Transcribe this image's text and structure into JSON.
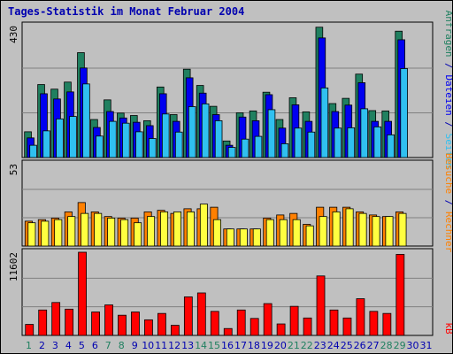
{
  "title": "Tages-Statistik im Monat Februar 2004",
  "colors": {
    "frame_bg": "#C0C0C0",
    "plot_bg": "#C0C0C0",
    "title": "#0000B0",
    "hits": "#208060",
    "files": "#0000F0",
    "pages": "#30C0F0",
    "visits": "#FF8000",
    "sites": "#FFFF40",
    "kbytes": "#FF0000",
    "weekend_label": "#208060",
    "weekday_label": "#0000B0"
  },
  "chart_data": [
    {
      "type": "bar",
      "panel": "top",
      "ymax_label": "430",
      "ylim": [
        0,
        430
      ],
      "grid": true,
      "categories": [
        "1",
        "2",
        "3",
        "4",
        "5",
        "6",
        "7",
        "8",
        "9",
        "10",
        "11",
        "12",
        "13",
        "14",
        "15",
        "16",
        "17",
        "18",
        "19",
        "20",
        "21",
        "22",
        "23",
        "24",
        "25",
        "26",
        "27",
        "28",
        "29",
        "30",
        "31"
      ],
      "series": [
        {
          "name": "Anfragen",
          "color_key": "hits",
          "values": [
            84,
            238,
            223,
            246,
            342,
            124,
            188,
            145,
            137,
            120,
            230,
            140,
            288,
            235,
            167,
            54,
            146,
            152,
            213,
            124,
            195,
            149,
            425,
            176,
            193,
            272,
            153,
            152,
            412,
            0,
            0
          ]
        },
        {
          "name": "Dateien",
          "color_key": "files",
          "values": [
            64,
            208,
            191,
            214,
            292,
            98,
            150,
            129,
            115,
            104,
            208,
            118,
            260,
            210,
            140,
            40,
            132,
            120,
            205,
            96,
            172,
            118,
            390,
            150,
            171,
            244,
            118,
            118,
            384,
            0,
            0
          ]
        },
        {
          "name": "Seiten",
          "color_key": "pages",
          "values": [
            40,
            87,
            126,
            134,
            240,
            70,
            118,
            112,
            84,
            62,
            142,
            83,
            166,
            175,
            120,
            33,
            60,
            69,
            156,
            45,
            96,
            83,
            227,
            96,
            97,
            159,
            100,
            74,
            290,
            0,
            0
          ]
        }
      ]
    },
    {
      "type": "bar",
      "panel": "middle",
      "ymax_label": "53",
      "ylim": [
        0,
        53
      ],
      "grid": true,
      "categories": [
        "1",
        "2",
        "3",
        "4",
        "5",
        "6",
        "7",
        "8",
        "9",
        "10",
        "11",
        "12",
        "13",
        "14",
        "15",
        "16",
        "17",
        "18",
        "19",
        "20",
        "21",
        "22",
        "23",
        "24",
        "25",
        "26",
        "27",
        "28",
        "29",
        "30",
        "31"
      ],
      "series": [
        {
          "name": "Besuche",
          "color_key": "visits",
          "values": [
            16,
            17,
            18,
            22,
            28,
            22,
            19,
            18,
            18,
            22,
            23,
            21,
            24,
            24,
            25,
            11,
            11,
            11,
            18,
            20,
            21,
            14,
            25,
            25,
            25,
            22,
            20,
            19,
            22,
            0,
            0
          ]
        },
        {
          "name": "Rechner",
          "color_key": "sites",
          "values": [
            15,
            16,
            17,
            19,
            21,
            21,
            18,
            17,
            15,
            19,
            22,
            22,
            22,
            27,
            17,
            11,
            11,
            11,
            17,
            17,
            17,
            13,
            19,
            22,
            24,
            21,
            19,
            19,
            21,
            0,
            0
          ]
        }
      ]
    },
    {
      "type": "bar",
      "panel": "bottom",
      "ymax_label": "11602",
      "ylim": [
        0,
        11602
      ],
      "grid": true,
      "categories": [
        "1",
        "2",
        "3",
        "4",
        "5",
        "6",
        "7",
        "8",
        "9",
        "10",
        "11",
        "12",
        "13",
        "14",
        "15",
        "16",
        "17",
        "18",
        "19",
        "20",
        "21",
        "22",
        "23",
        "24",
        "25",
        "26",
        "27",
        "28",
        "29",
        "30",
        "31"
      ],
      "series": [
        {
          "name": "kB",
          "color_key": "kbytes",
          "values": [
            1536,
            3545,
            4590,
            3665,
            11602,
            3268,
            4255,
            2816,
            3268,
            2176,
            3064,
            1408,
            5375,
            5925,
            3352,
            960,
            3545,
            2369,
            4437,
            1600,
            4055,
            2432,
            8295,
            3545,
            2432,
            5120,
            3352,
            3064,
            11300,
            0,
            0
          ]
        }
      ]
    }
  ],
  "right_labels": {
    "top": [
      {
        "text": "Anfragen",
        "color_key": "hits"
      },
      {
        "text": " / ",
        "color_key": "title"
      },
      {
        "text": "Dateien",
        "color_key": "files"
      },
      {
        "text": " / ",
        "color_key": "title"
      },
      {
        "text": "Seiten",
        "color_key": "pages"
      }
    ],
    "middle": [
      {
        "text": "Besuche",
        "color_key": "visits"
      },
      {
        "text": " / ",
        "color_key": "title"
      },
      {
        "text": "Rechner",
        "color_key": "visits"
      }
    ],
    "bottom": [
      {
        "text": "kB",
        "color_key": "kbytes"
      }
    ]
  },
  "day_labels": [
    "1",
    "2",
    "3",
    "4",
    "5",
    "6",
    "7",
    "8",
    "9",
    "10",
    "11",
    "12",
    "13",
    "14",
    "15",
    "16",
    "17",
    "18",
    "19",
    "20",
    "21",
    "22",
    "23",
    "24",
    "25",
    "26",
    "27",
    "28",
    "29",
    "30",
    "31"
  ],
  "weekend_days": [
    "1",
    "7",
    "8",
    "14",
    "15",
    "21",
    "22",
    "28",
    "29"
  ]
}
